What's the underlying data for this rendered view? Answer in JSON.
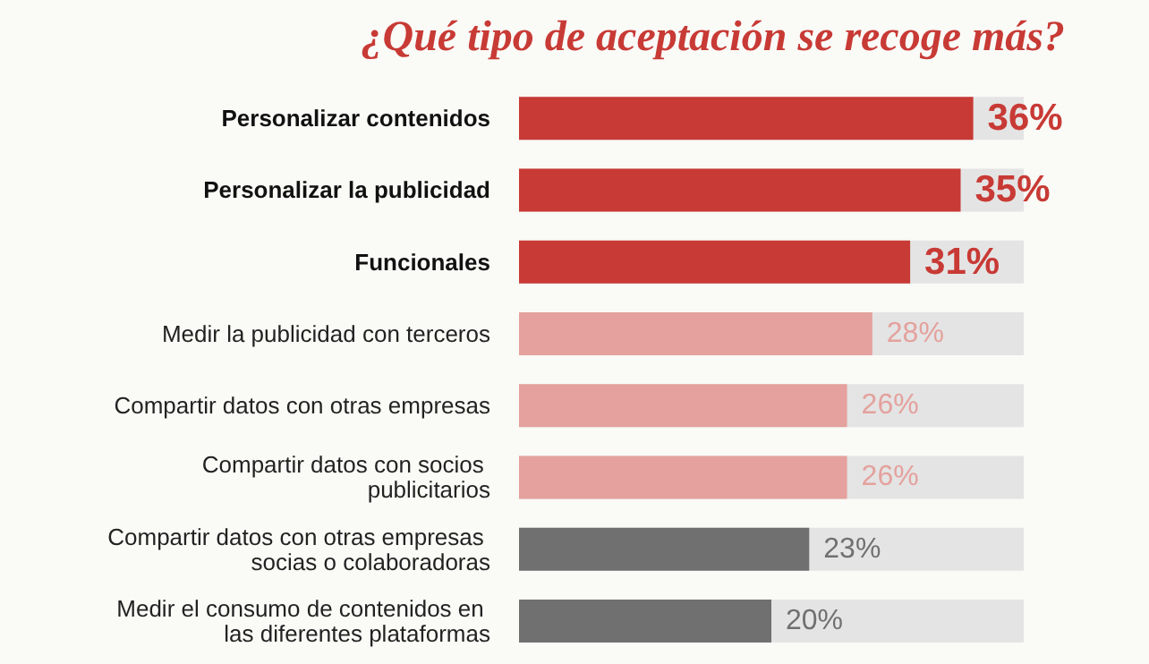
{
  "chart_data": {
    "type": "bar",
    "orientation": "horizontal",
    "title": "¿Qué tipo de aceptación se recoge más?",
    "categories": [
      "Personalizar contenidos",
      "Personalizar la publicidad",
      "Funcionales",
      "Medir la publicidad con terceros",
      "Compartir datos con otras empresas",
      "Compartir datos con socios publicitarios",
      "Compartir datos con otras empresas socias o colaboradoras",
      "Medir el consumo de contenidos en las diferentes plataformas"
    ],
    "values": [
      36,
      35,
      31,
      28,
      26,
      26,
      23,
      20
    ],
    "value_labels": [
      "36%",
      "35%",
      "31%",
      "28%",
      "26%",
      "26%",
      "23%",
      "20%"
    ],
    "colors": [
      "#c83a35",
      "#c83a35",
      "#c83a35",
      "#e4a19d",
      "#e4a19d",
      "#e4a19d",
      "#707070",
      "#707070"
    ]
  }
}
